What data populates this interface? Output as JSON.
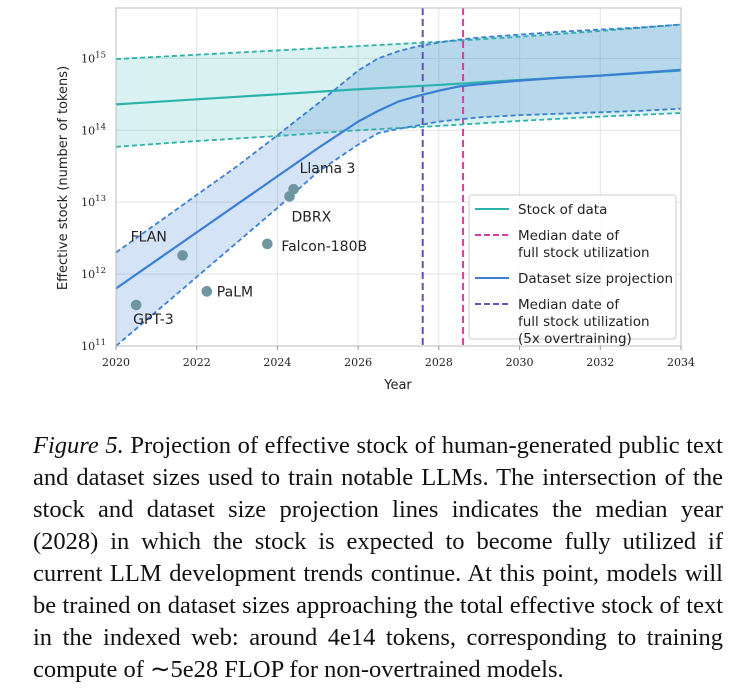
{
  "chart_data": {
    "type": "line",
    "title": "",
    "xlabel": "Year",
    "ylabel": "Effective stock (number of tokens)",
    "xlim": [
      2020,
      2034
    ],
    "ylim_log10": [
      11,
      15.7
    ],
    "x_ticks": [
      2020,
      2022,
      2024,
      2026,
      2028,
      2030,
      2032,
      2034
    ],
    "x_tick_labels": [
      "2020",
      "2022",
      "2024",
      "2026",
      "2028",
      "2030",
      "2032",
      "2034"
    ],
    "y_ticks_log10": [
      11,
      12,
      13,
      14,
      15
    ],
    "y_tick_labels": [
      {
        "base": "10",
        "exp": "11"
      },
      {
        "base": "10",
        "exp": "12"
      },
      {
        "base": "10",
        "exp": "13"
      },
      {
        "base": "10",
        "exp": "14"
      },
      {
        "base": "10",
        "exp": "15"
      }
    ],
    "grid": true,
    "series": [
      {
        "name": "Stock of data",
        "color": "#2ab3ad",
        "x": [
          2020,
          2022,
          2024,
          2026,
          2028,
          2030,
          2032,
          2034
        ],
        "y_log10": [
          14.36,
          14.43,
          14.5,
          14.57,
          14.63,
          14.7,
          14.76,
          14.83
        ],
        "band_lower_log10": [
          13.77,
          13.85,
          13.92,
          14.0,
          14.06,
          14.13,
          14.19,
          14.24
        ],
        "band_upper_log10": [
          14.99,
          15.05,
          15.11,
          15.17,
          15.23,
          15.3,
          15.38,
          15.47
        ]
      },
      {
        "name": "Dataset size projection",
        "color": "#3a7fd5",
        "x": [
          2020,
          2021,
          2022,
          2023,
          2024,
          2025,
          2026,
          2026.5,
          2027,
          2027.5,
          2028,
          2028.5,
          2029,
          2030,
          2031,
          2032,
          2033,
          2034
        ],
        "y_log10": [
          11.8,
          12.19,
          12.58,
          12.97,
          13.36,
          13.75,
          14.12,
          14.27,
          14.4,
          14.48,
          14.55,
          14.61,
          14.64,
          14.69,
          14.73,
          14.76,
          14.8,
          14.84
        ],
        "band_lower_log10": [
          11.0,
          11.48,
          11.96,
          12.44,
          12.92,
          13.42,
          13.8,
          13.96,
          14.02,
          14.07,
          14.12,
          14.15,
          14.18,
          14.21,
          14.23,
          14.25,
          14.27,
          14.3
        ],
        "band_upper_log10": [
          12.3,
          12.7,
          13.1,
          13.5,
          13.93,
          14.37,
          14.83,
          15.0,
          15.1,
          15.17,
          15.22,
          15.26,
          15.29,
          15.33,
          15.37,
          15.4,
          15.43,
          15.47
        ]
      }
    ],
    "vlines": [
      {
        "name": "Median date of full stock utilization",
        "x": 2028.6,
        "color": "#d63fa3",
        "style": "dashed"
      },
      {
        "name": "Median date of full stock utilization (5x overtraining)",
        "x": 2027.6,
        "color": "#6a4dbd",
        "style": "dashed"
      }
    ],
    "points": [
      {
        "name": "GPT-3",
        "x": 2020.5,
        "y_log10": 11.57
      },
      {
        "name": "FLAN",
        "x": 2021.65,
        "y_log10": 12.26
      },
      {
        "name": "PaLM",
        "x": 2022.25,
        "y_log10": 11.76
      },
      {
        "name": "Falcon-180B",
        "x": 2023.75,
        "y_log10": 12.42
      },
      {
        "name": "DBRX",
        "x": 2024.3,
        "y_log10": 13.08
      },
      {
        "name": "Llama 3",
        "x": 2024.4,
        "y_log10": 13.18
      }
    ],
    "legend": {
      "position": "bottom-right",
      "entries": [
        {
          "lines": [
            "Stock of data"
          ],
          "color": "#2ab3ad",
          "style": "solid"
        },
        {
          "lines": [
            "Median date of",
            "full stock utilization"
          ],
          "color": "#d63fa3",
          "style": "dashed"
        },
        {
          "lines": [
            "Dataset size projection"
          ],
          "color": "#3a7fd5",
          "style": "solid"
        },
        {
          "lines": [
            "Median date of",
            "full stock utilization",
            "(5x overtraining)"
          ],
          "color": "#6a4dbd",
          "style": "dashed"
        }
      ]
    }
  },
  "caption": {
    "label": "Figure 5.",
    "text": " Projection of effective stock of human-generated public text and dataset sizes used to train notable LLMs. The intersection of the stock and dataset size projection lines indicates the median year (2028) in which the stock is expected to become fully utilized if current LLM development trends continue. At this point, models will be trained on dataset sizes approaching the total effective stock of text in the indexed web: around 4e14 tokens, corresponding to training compute of ∼5e28 FLOP for non-overtrained models."
  }
}
